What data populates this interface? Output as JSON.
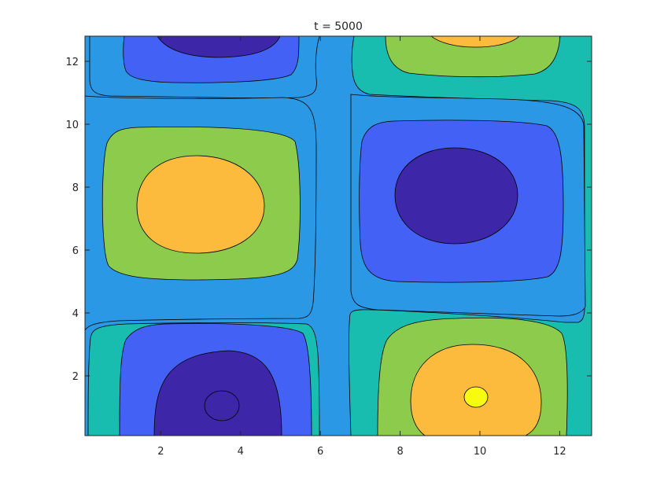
{
  "chart_data": {
    "type": "contourf",
    "title": "t = 5000",
    "xlabel": "",
    "ylabel": "",
    "xlim": [
      0.1,
      12.8
    ],
    "ylim": [
      0.1,
      12.8
    ],
    "x_ticks": [
      2,
      4,
      6,
      8,
      10,
      12
    ],
    "y_ticks": [
      2,
      4,
      6,
      8,
      10,
      12
    ],
    "x_tick_labels": [
      "2",
      "4",
      "6",
      "8",
      "10",
      "12"
    ],
    "y_tick_labels": [
      "2",
      "4",
      "6",
      "8",
      "10",
      "12"
    ],
    "grid": false,
    "colormap": "parula",
    "level_colors": [
      "#3e26a8",
      "#4361f5",
      "#2b98e6",
      "#18bdb0",
      "#8dcb4c",
      "#fcbb3d",
      "#f9fb0e"
    ],
    "contour_line_color": "#000000",
    "extrema": [
      {
        "kind": "max",
        "x": 2.8,
        "y": 7.5,
        "level_index": 5
      },
      {
        "kind": "min",
        "x": 9.35,
        "y": 7.75,
        "level_index": 0
      },
      {
        "kind": "min",
        "x": 3.45,
        "y": 1.05,
        "level_index": 0
      },
      {
        "kind": "max",
        "x": 9.95,
        "y": 1.3,
        "level_index": 6
      },
      {
        "kind": "min",
        "x": 3.5,
        "y": 12.9,
        "level_index": 0
      },
      {
        "kind": "max",
        "x": 9.8,
        "y": 13.0,
        "level_index": 5
      }
    ]
  }
}
